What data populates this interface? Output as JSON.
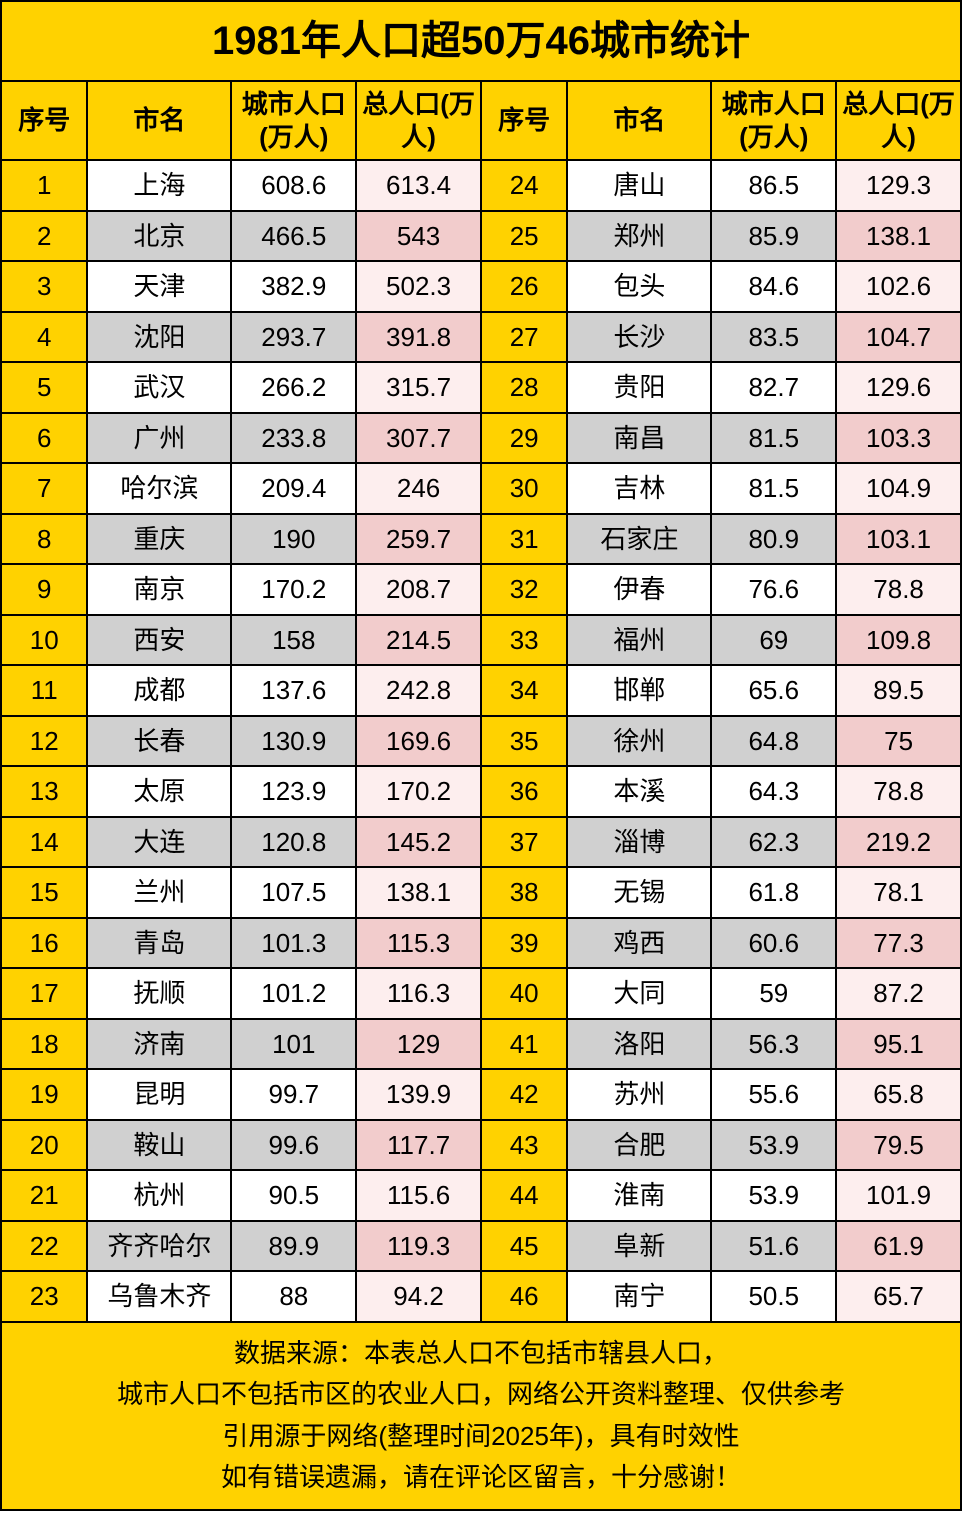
{
  "colors": {
    "yellow": "#ffd200",
    "border": "#000000",
    "text": "#000000",
    "row_odd_name": "#ffffff",
    "row_even_name": "#d0d0d0",
    "row_odd_total": "#fdeeee",
    "row_even_total": "#f2cccc"
  },
  "title": "1981年人口超50万46城市统计",
  "headers": {
    "idx": "序号",
    "name": "市名",
    "city_pop": "城市人口(万人)",
    "total_pop": "总人口(万人)"
  },
  "left": [
    {
      "idx": "1",
      "name": "上海",
      "city": "608.6",
      "total": "613.4"
    },
    {
      "idx": "2",
      "name": "北京",
      "city": "466.5",
      "total": "543"
    },
    {
      "idx": "3",
      "name": "天津",
      "city": "382.9",
      "total": "502.3"
    },
    {
      "idx": "4",
      "name": "沈阳",
      "city": "293.7",
      "total": "391.8"
    },
    {
      "idx": "5",
      "name": "武汉",
      "city": "266.2",
      "total": "315.7"
    },
    {
      "idx": "6",
      "name": "广州",
      "city": "233.8",
      "total": "307.7"
    },
    {
      "idx": "7",
      "name": "哈尔滨",
      "city": "209.4",
      "total": "246"
    },
    {
      "idx": "8",
      "name": "重庆",
      "city": "190",
      "total": "259.7"
    },
    {
      "idx": "9",
      "name": "南京",
      "city": "170.2",
      "total": "208.7"
    },
    {
      "idx": "10",
      "name": "西安",
      "city": "158",
      "total": "214.5"
    },
    {
      "idx": "11",
      "name": "成都",
      "city": "137.6",
      "total": "242.8"
    },
    {
      "idx": "12",
      "name": "长春",
      "city": "130.9",
      "total": "169.6"
    },
    {
      "idx": "13",
      "name": "太原",
      "city": "123.9",
      "total": "170.2"
    },
    {
      "idx": "14",
      "name": "大连",
      "city": "120.8",
      "total": "145.2"
    },
    {
      "idx": "15",
      "name": "兰州",
      "city": "107.5",
      "total": "138.1"
    },
    {
      "idx": "16",
      "name": "青岛",
      "city": "101.3",
      "total": "115.3"
    },
    {
      "idx": "17",
      "name": "抚顺",
      "city": "101.2",
      "total": "116.3"
    },
    {
      "idx": "18",
      "name": "济南",
      "city": "101",
      "total": "129"
    },
    {
      "idx": "19",
      "name": "昆明",
      "city": "99.7",
      "total": "139.9"
    },
    {
      "idx": "20",
      "name": "鞍山",
      "city": "99.6",
      "total": "117.7"
    },
    {
      "idx": "21",
      "name": "杭州",
      "city": "90.5",
      "total": "115.6"
    },
    {
      "idx": "22",
      "name": "齐齐哈尔",
      "city": "89.9",
      "total": "119.3"
    },
    {
      "idx": "23",
      "name": "乌鲁木齐",
      "city": "88",
      "total": "94.2"
    }
  ],
  "right": [
    {
      "idx": "24",
      "name": "唐山",
      "city": "86.5",
      "total": "129.3"
    },
    {
      "idx": "25",
      "name": "郑州",
      "city": "85.9",
      "total": "138.1"
    },
    {
      "idx": "26",
      "name": "包头",
      "city": "84.6",
      "total": "102.6"
    },
    {
      "idx": "27",
      "name": "长沙",
      "city": "83.5",
      "total": "104.7"
    },
    {
      "idx": "28",
      "name": "贵阳",
      "city": "82.7",
      "total": "129.6"
    },
    {
      "idx": "29",
      "name": "南昌",
      "city": "81.5",
      "total": "103.3"
    },
    {
      "idx": "30",
      "name": "吉林",
      "city": "81.5",
      "total": "104.9"
    },
    {
      "idx": "31",
      "name": "石家庄",
      "city": "80.9",
      "total": "103.1"
    },
    {
      "idx": "32",
      "name": "伊春",
      "city": "76.6",
      "total": "78.8"
    },
    {
      "idx": "33",
      "name": "福州",
      "city": "69",
      "total": "109.8"
    },
    {
      "idx": "34",
      "name": "邯郸",
      "city": "65.6",
      "total": "89.5"
    },
    {
      "idx": "35",
      "name": "徐州",
      "city": "64.8",
      "total": "75"
    },
    {
      "idx": "36",
      "name": "本溪",
      "city": "64.3",
      "total": "78.8"
    },
    {
      "idx": "37",
      "name": "淄博",
      "city": "62.3",
      "total": "219.2"
    },
    {
      "idx": "38",
      "name": "无锡",
      "city": "61.8",
      "total": "78.1"
    },
    {
      "idx": "39",
      "name": "鸡西",
      "city": "60.6",
      "total": "77.3"
    },
    {
      "idx": "40",
      "name": "大同",
      "city": "59",
      "total": "87.2"
    },
    {
      "idx": "41",
      "name": "洛阳",
      "city": "56.3",
      "total": "95.1"
    },
    {
      "idx": "42",
      "name": "苏州",
      "city": "55.6",
      "total": "65.8"
    },
    {
      "idx": "43",
      "name": "合肥",
      "city": "53.9",
      "total": "79.5"
    },
    {
      "idx": "44",
      "name": "淮南",
      "city": "53.9",
      "total": "101.9"
    },
    {
      "idx": "45",
      "name": "阜新",
      "city": "51.6",
      "total": "61.9"
    },
    {
      "idx": "46",
      "name": "南宁",
      "city": "50.5",
      "total": "65.7"
    }
  ],
  "footer_lines": [
    "数据来源：本表总人口不包括市辖县人口，",
    "城市人口不包括市区的农业人口，网络公开资料整理、仅供参考",
    "引用源于网络(整理时间2025年)，具有时效性",
    "如有错误遗漏，请在评论区留言，十分感谢！"
  ]
}
